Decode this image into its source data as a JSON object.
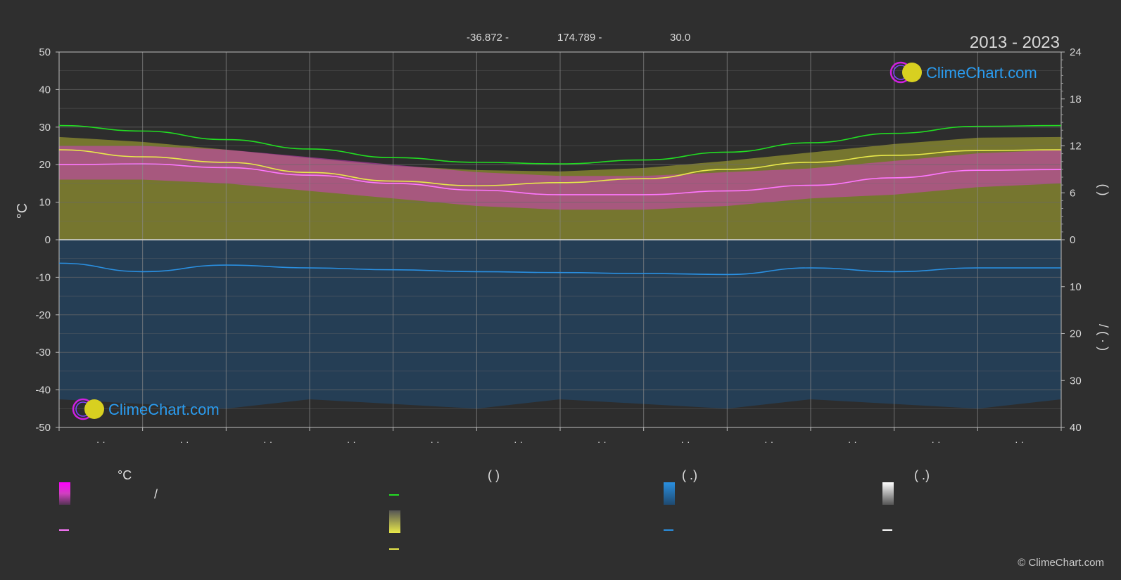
{
  "header": {
    "lat": "-36.872 -",
    "lon": "174.789 -",
    "elev": "30.0",
    "period": "2013 - 2023"
  },
  "logo": {
    "text": "ClimeChart.com"
  },
  "copyright": "© ClimeChart.com",
  "axes": {
    "left_label": "°C",
    "left_ticks": [
      50,
      40,
      30,
      20,
      10,
      0,
      -10,
      -20,
      -30,
      -40,
      -50
    ],
    "right_top_ticks": [
      24,
      18,
      12,
      6,
      0
    ],
    "right_bottom_ticks": [
      10,
      20,
      30,
      40
    ],
    "right_top_label": "(    )",
    "right_bottom_label": "/     (  ·  )",
    "month_labels": [
      "· ·",
      "· ·",
      "· ·",
      "· ·",
      "· ·",
      "· ·",
      "· ·",
      "· ·",
      "· ·",
      "· ·",
      "· ·",
      "· ·"
    ]
  },
  "legend": {
    "col1_head": "°C",
    "col1_item1": "/",
    "col2_head": "(          )",
    "col3_head": "(   .)",
    "col4_head": "(   .)"
  },
  "colors": {
    "background": "#2f2f2f",
    "daylight": "#22dd22",
    "sunshine": "#e8e84a",
    "temp_mean": "#ff77ff",
    "temp_band": "#d040c0",
    "sunshine_band": "#8f8f30",
    "precip": "#2a8fe0",
    "precip_band": "#1f4a70",
    "grid": "#6a6a6a",
    "axis_text": "#d8d8d8"
  },
  "chart_data": {
    "type": "line",
    "x_months": 12,
    "ylim_left": [
      -50,
      50
    ],
    "ylim_right_top": [
      0,
      24
    ],
    "ylim_right_bottom": [
      40,
      0
    ],
    "grid": true,
    "series": [
      {
        "key": "daylight_hours",
        "axis": "right_top",
        "values": [
          14.6,
          13.9,
          12.8,
          11.6,
          10.5,
          9.9,
          9.7,
          10.2,
          11.2,
          12.4,
          13.6,
          14.5,
          14.6
        ]
      },
      {
        "key": "sunshine_hours",
        "axis": "right_top",
        "values": [
          11.5,
          10.6,
          9.9,
          8.6,
          7.5,
          6.9,
          7.3,
          7.8,
          9.0,
          9.9,
          10.8,
          11.4,
          11.5
        ]
      },
      {
        "key": "mean_temp",
        "axis": "left",
        "values": [
          20.0,
          20.2,
          19.2,
          17.2,
          15.0,
          13.2,
          12.0,
          12.0,
          13.0,
          14.5,
          16.5,
          18.5,
          18.7
        ]
      },
      {
        "key": "precipitation_mm",
        "axis": "right_bottom",
        "values": [
          5.0,
          6.8,
          5.4,
          6.0,
          6.4,
          6.8,
          7.0,
          7.2,
          7.4,
          6.0,
          6.8,
          6.0,
          6.0
        ]
      }
    ],
    "temp_band": {
      "upper": [
        25,
        25,
        24,
        22,
        20,
        18,
        17,
        17,
        18,
        19,
        21,
        23,
        24
      ],
      "lower": [
        16,
        16,
        15,
        13,
        11,
        9,
        8,
        8,
        9,
        11,
        12,
        14,
        15
      ]
    }
  }
}
